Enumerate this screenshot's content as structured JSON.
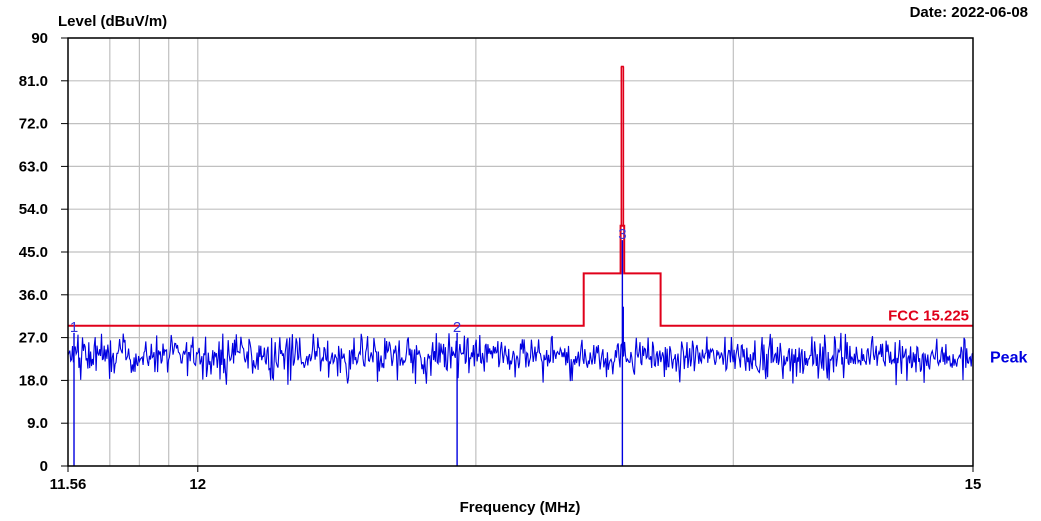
{
  "header": {
    "ylabel": "Level (dBuV/m)",
    "date": "Date: 2022-06-08"
  },
  "chart_data": {
    "type": "line",
    "xlabel": "Frequency (MHz)",
    "ylabel": "Level (dBuV/m)",
    "xlim": [
      11.56,
      15
    ],
    "ylim": [
      0,
      90
    ],
    "x_scale": "log",
    "grid": true,
    "y_ticks": [
      "0",
      "9.0",
      "18.0",
      "27.0",
      "36.0",
      "45.0",
      "54.0",
      "63.0",
      "72.0",
      "81.0",
      "90"
    ],
    "x_ticks": [
      {
        "label": "11.56",
        "value": 11.56
      },
      {
        "label": "12",
        "value": 12
      },
      {
        "label": "15",
        "value": 15
      }
    ],
    "colors": {
      "limit": "#e0001a",
      "peak": "#0000e0",
      "grid": "#c0c0c0",
      "frame": "#000000"
    },
    "limit_line": {
      "name": "FCC 15.225",
      "points": [
        [
          11.56,
          29.5
        ],
        [
          13.41,
          29.5
        ],
        [
          13.41,
          40.5
        ],
        [
          13.553,
          40.5
        ],
        [
          13.553,
          50.5
        ],
        [
          13.567,
          50.5
        ],
        [
          13.567,
          40.5
        ],
        [
          13.71,
          40.5
        ],
        [
          13.71,
          29.5
        ],
        [
          15,
          29.5
        ]
      ],
      "spike": {
        "x": 13.56,
        "y": 84.0
      }
    },
    "series": [
      {
        "name": "Peak",
        "noise_floor_mean": 23,
        "noise_floor_range": [
          17,
          28
        ],
        "spurs": [
          {
            "x": 13.56,
            "y": 33.5
          }
        ]
      }
    ],
    "markers": [
      {
        "label": "1",
        "x": 11.58,
        "y": 28.0
      },
      {
        "label": "2",
        "x": 12.93,
        "y": 28.0
      },
      {
        "label": "3",
        "x": 13.56,
        "y": 47.5
      }
    ]
  }
}
